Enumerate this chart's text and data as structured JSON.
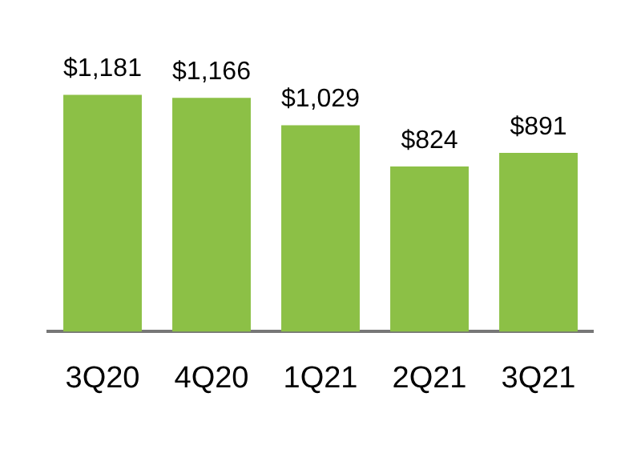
{
  "chart_data": {
    "type": "bar",
    "categories": [
      "3Q20",
      "4Q20",
      "1Q21",
      "2Q21",
      "3Q21"
    ],
    "values": [
      1181,
      1166,
      1029,
      824,
      891
    ],
    "value_labels": [
      "$1,181",
      "$1,166",
      "$1,029",
      "$824",
      "$891"
    ],
    "color": "#8cc046",
    "grid": false,
    "legend": false,
    "tick_labels": "x"
  }
}
